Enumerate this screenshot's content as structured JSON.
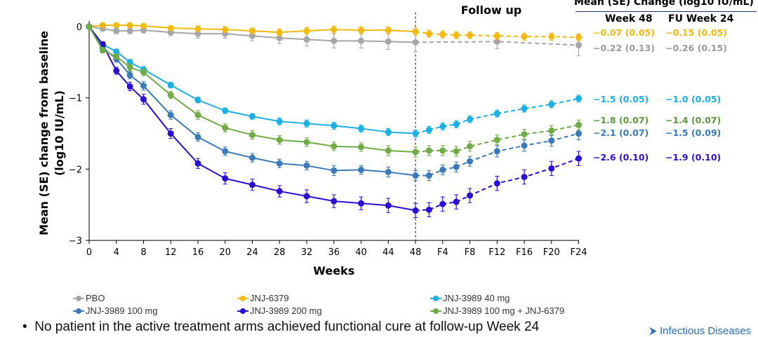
{
  "chart_data": {
    "type": "line",
    "title": "",
    "annotation_followup": "Follow up",
    "xlabel": "Weeks",
    "ylabel_line1": "Mean (SE) change from baseline",
    "ylabel_line2": "(log10 IU/mL)",
    "ylim": [
      -3,
      0
    ],
    "yticks": [
      0,
      -1,
      -2,
      -3
    ],
    "ytick_labels": [
      "0",
      "−1",
      "−2",
      "−3"
    ],
    "xticks": [
      0,
      4,
      8,
      12,
      16,
      20,
      24,
      28,
      32,
      36,
      40,
      44,
      48,
      52,
      56,
      60,
      64,
      68,
      72
    ],
    "xtick_labels": [
      "0",
      "4",
      "8",
      "12",
      "16",
      "20",
      "24",
      "28",
      "32",
      "36",
      "40",
      "44",
      "48",
      "F4",
      "F8",
      "F12",
      "F16",
      "F20",
      "F24"
    ],
    "end_of_treatment_week": 48,
    "legend_position": "bottom",
    "series": [
      {
        "name": "PBO",
        "color": "#a6a6a6",
        "x": [
          0,
          2,
          4,
          6,
          8,
          12,
          16,
          20,
          24,
          28,
          32,
          36,
          40,
          44,
          48,
          60,
          72
        ],
        "y": [
          0,
          -0.03,
          -0.06,
          -0.06,
          -0.05,
          -0.08,
          -0.1,
          -0.1,
          -0.13,
          -0.16,
          -0.18,
          -0.2,
          -0.2,
          -0.21,
          -0.22,
          -0.21,
          -0.26
        ],
        "se": [
          0,
          0.03,
          0.04,
          0.04,
          0.04,
          0.05,
          0.06,
          0.06,
          0.07,
          0.08,
          0.09,
          0.1,
          0.1,
          0.11,
          0.13,
          0.1,
          0.15
        ]
      },
      {
        "name": "JNJ-6379",
        "color": "#f2b90f",
        "x": [
          0,
          2,
          4,
          6,
          8,
          12,
          16,
          20,
          24,
          28,
          32,
          36,
          40,
          44,
          48,
          50,
          52,
          54,
          56,
          60,
          64,
          68,
          72
        ],
        "y": [
          0,
          0.02,
          0.02,
          0.02,
          0.01,
          -0.02,
          -0.03,
          -0.04,
          -0.06,
          -0.08,
          -0.06,
          -0.04,
          -0.05,
          -0.05,
          -0.07,
          -0.1,
          -0.11,
          -0.12,
          -0.12,
          -0.13,
          -0.14,
          -0.14,
          -0.15
        ],
        "se": [
          0,
          0.03,
          0.03,
          0.03,
          0.03,
          0.03,
          0.04,
          0.04,
          0.04,
          0.05,
          0.05,
          0.05,
          0.05,
          0.05,
          0.05,
          0.05,
          0.05,
          0.05,
          0.05,
          0.05,
          0.05,
          0.05,
          0.05
        ]
      },
      {
        "name": "JNJ-3989 40 mg",
        "color": "#1ab0e6",
        "x": [
          0,
          2,
          4,
          6,
          8,
          12,
          16,
          20,
          24,
          28,
          32,
          36,
          40,
          44,
          48,
          50,
          52,
          54,
          56,
          60,
          64,
          68,
          72
        ],
        "y": [
          0,
          -0.25,
          -0.35,
          -0.5,
          -0.6,
          -0.82,
          -1.03,
          -1.18,
          -1.26,
          -1.33,
          -1.36,
          -1.39,
          -1.43,
          -1.48,
          -1.5,
          -1.45,
          -1.4,
          -1.37,
          -1.3,
          -1.22,
          -1.15,
          -1.09,
          -1.01
        ],
        "se": [
          0,
          0.03,
          0.03,
          0.04,
          0.04,
          0.04,
          0.04,
          0.04,
          0.04,
          0.05,
          0.05,
          0.05,
          0.05,
          0.05,
          0.05,
          0.05,
          0.05,
          0.05,
          0.05,
          0.05,
          0.05,
          0.05,
          0.05
        ]
      },
      {
        "name": "JNJ-3989 100 mg",
        "color": "#3a7ab8",
        "x": [
          0,
          2,
          4,
          6,
          8,
          12,
          16,
          20,
          24,
          28,
          32,
          36,
          40,
          44,
          48,
          50,
          52,
          54,
          56,
          60,
          64,
          68,
          72
        ],
        "y": [
          0,
          -0.3,
          -0.45,
          -0.68,
          -0.83,
          -1.24,
          -1.55,
          -1.75,
          -1.84,
          -1.92,
          -1.95,
          -2.02,
          -2.01,
          -2.04,
          -2.09,
          -2.09,
          -2.01,
          -1.97,
          -1.89,
          -1.75,
          -1.67,
          -1.6,
          -1.5
        ],
        "se": [
          0,
          0.04,
          0.05,
          0.05,
          0.06,
          0.06,
          0.06,
          0.06,
          0.06,
          0.06,
          0.06,
          0.07,
          0.06,
          0.07,
          0.07,
          0.07,
          0.07,
          0.07,
          0.07,
          0.08,
          0.08,
          0.08,
          0.09
        ]
      },
      {
        "name": "JNJ-3989 200 mg",
        "color": "#2a10d6",
        "x": [
          0,
          2,
          4,
          6,
          8,
          12,
          16,
          20,
          24,
          28,
          32,
          36,
          40,
          44,
          48,
          50,
          52,
          54,
          56,
          60,
          64,
          68,
          72
        ],
        "y": [
          0,
          -0.25,
          -0.62,
          -0.84,
          -1.02,
          -1.5,
          -1.92,
          -2.13,
          -2.22,
          -2.31,
          -2.38,
          -2.45,
          -2.48,
          -2.51,
          -2.58,
          -2.57,
          -2.49,
          -2.46,
          -2.37,
          -2.2,
          -2.11,
          -1.99,
          -1.85
        ],
        "se": [
          0,
          0.04,
          0.05,
          0.06,
          0.07,
          0.07,
          0.07,
          0.08,
          0.08,
          0.08,
          0.09,
          0.09,
          0.09,
          0.1,
          0.1,
          0.1,
          0.1,
          0.1,
          0.1,
          0.1,
          0.1,
          0.1,
          0.1
        ]
      },
      {
        "name": "JNJ-3989 100 mg + JNJ-6379",
        "color": "#6fac46",
        "x": [
          0,
          2,
          4,
          6,
          8,
          12,
          16,
          20,
          24,
          28,
          32,
          36,
          40,
          44,
          48,
          50,
          52,
          54,
          56,
          60,
          64,
          68,
          72
        ],
        "y": [
          0,
          -0.33,
          -0.42,
          -0.57,
          -0.64,
          -0.96,
          -1.24,
          -1.42,
          -1.52,
          -1.59,
          -1.62,
          -1.68,
          -1.69,
          -1.74,
          -1.76,
          -1.74,
          -1.74,
          -1.75,
          -1.68,
          -1.59,
          -1.51,
          -1.46,
          -1.38
        ],
        "se": [
          0,
          0.04,
          0.04,
          0.05,
          0.05,
          0.05,
          0.06,
          0.06,
          0.06,
          0.06,
          0.06,
          0.06,
          0.06,
          0.07,
          0.07,
          0.07,
          0.07,
          0.07,
          0.07,
          0.07,
          0.07,
          0.07,
          0.07
        ]
      }
    ]
  },
  "summary_table": {
    "title": "Mean (SE) Change (log10 IU/mL)",
    "col1": "Week 48",
    "col2": "FU Week 24",
    "rows": [
      {
        "series": "JNJ-6379",
        "color": "#f2b90f",
        "week48": "−0.07 (0.05)",
        "fu24": "−0.15 (0.05)"
      },
      {
        "series": "PBO",
        "color": "#999999",
        "week48": "−0.22 (0.13)",
        "fu24": "−0.26 (0.15)"
      },
      {
        "series": "JNJ-3989 40 mg",
        "color": "#1ab0e6",
        "week48": "−1.5 (0.05)",
        "fu24": "−1.0 (0.05)"
      },
      {
        "series": "JNJ-3989 100 mg + JNJ-6379",
        "color": "#5a9a3a",
        "week48": "−1.8 (0.07)",
        "fu24": "−1.4 (0.07)"
      },
      {
        "series": "JNJ-3989 100 mg",
        "color": "#3a7ab8",
        "week48": "−2.1 (0.07)",
        "fu24": "−1.5 (0.09)"
      },
      {
        "series": "JNJ-3989 200 mg",
        "color": "#2a10d6",
        "week48": "−2.6 (0.10)",
        "fu24": "−1.9 (0.10)"
      }
    ]
  },
  "footnote": "No patient in the active treatment arms achieved functional cure at follow-up Week 24",
  "logo_text": "Infectious Diseases"
}
